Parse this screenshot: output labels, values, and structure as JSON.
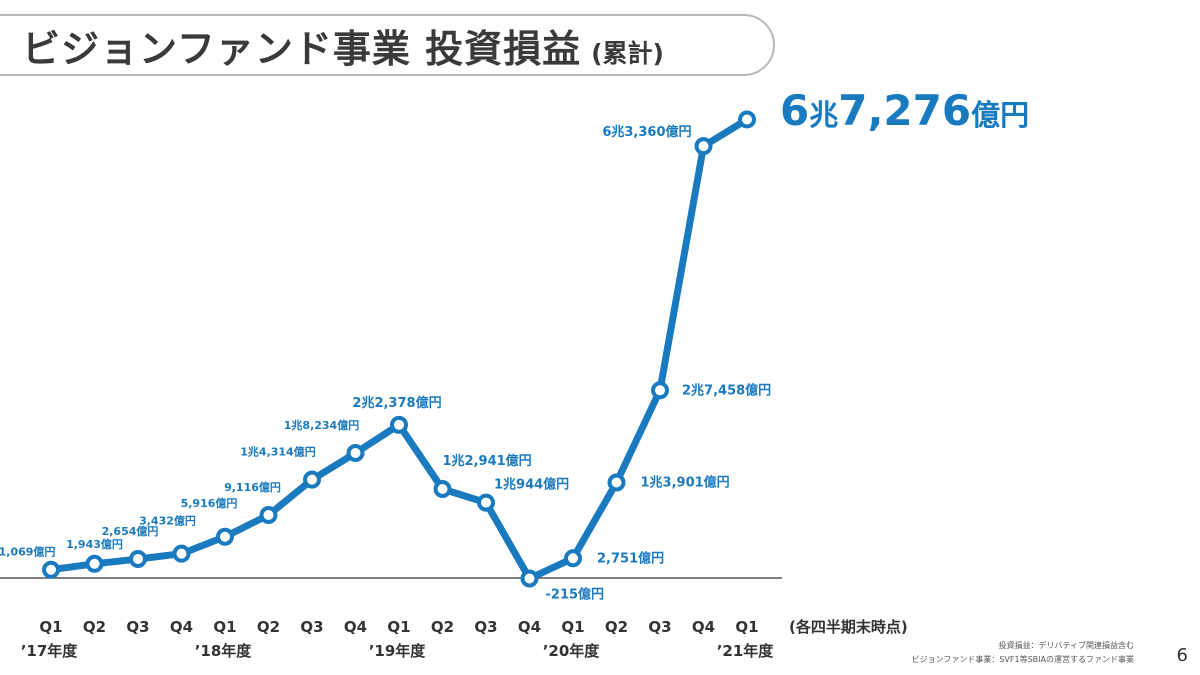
{
  "header": {
    "title": "ビジョンファンド事業 投資損益",
    "subtitle": "(累計)"
  },
  "headline": {
    "value_prefix": "6",
    "value_cho": "兆",
    "value_main": "7,276",
    "value_unit": "億円"
  },
  "colors": {
    "line": "#1a7abf",
    "label": "#1a7abf",
    "axis": "#555555",
    "title": "#3a3a3a"
  },
  "chart_data": {
    "type": "line",
    "title": "ビジョンファンド事業 投資損益 (累計)",
    "unit": "億円",
    "x_note": "(各四半期末時点)",
    "categories": [
      "Q1",
      "Q2",
      "Q3",
      "Q4",
      "Q1",
      "Q2",
      "Q3",
      "Q4",
      "Q1",
      "Q2",
      "Q3",
      "Q4",
      "Q1",
      "Q2",
      "Q3",
      "Q4",
      "Q1"
    ],
    "year_labels": [
      {
        "index": 0,
        "label": "’17年度"
      },
      {
        "index": 4,
        "label": "’18年度"
      },
      {
        "index": 8,
        "label": "’19年度"
      },
      {
        "index": 12,
        "label": "’20年度"
      },
      {
        "index": 16,
        "label": "’21年度"
      }
    ],
    "series": [
      {
        "values": [
          1069,
          1943,
          2654,
          3432,
          5916,
          9116,
          14314,
          18234,
          22378,
          12941,
          10944,
          -215,
          2751,
          13901,
          27458,
          63360,
          67276
        ],
        "labels": [
          "1,069億円",
          "1,943億円",
          "2,654億円",
          "3,432億円",
          "5,916億円",
          "9,116億円",
          "1兆4,314億円",
          "1兆8,234億円",
          "2兆2,378億円",
          "1兆2,941億円",
          "1兆944億円",
          "-215億円",
          "2,751億円",
          "1兆3,901億円",
          "2兆7,458億円",
          "6兆3,360億円",
          ""
        ]
      }
    ],
    "ylim": [
      -215,
      67276
    ],
    "grid": false,
    "legend": "none"
  },
  "footnotes": {
    "line1": "投資損益：デリバティブ関連損益含む",
    "line2": "ビジョンファンド事業：SVF1等SBIAの運営するファンド事業"
  },
  "page": {
    "number": "6"
  }
}
